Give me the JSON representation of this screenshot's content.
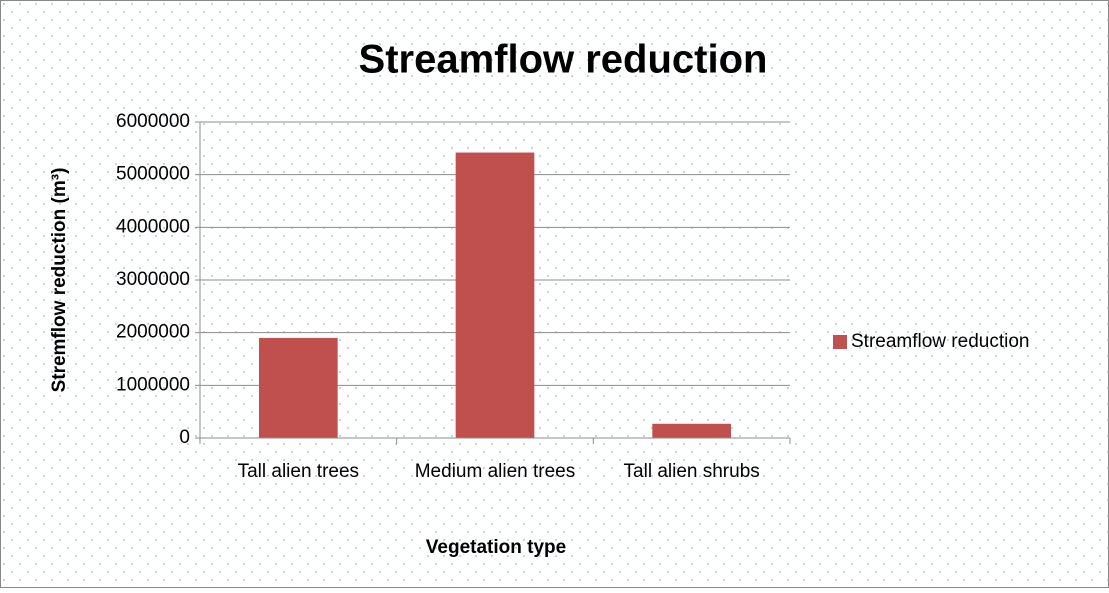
{
  "chart_data": {
    "type": "bar",
    "title": "Streamflow reduction",
    "categories": [
      "Tall alien trees",
      "Medium alien trees",
      "Tall alien shrubs"
    ],
    "series": [
      {
        "name": "Streamflow reduction",
        "color": "#c0504d",
        "values": [
          1900000,
          5420000,
          270000
        ]
      }
    ],
    "ylim": [
      0,
      6000000
    ],
    "yticks": [
      0,
      1000000,
      2000000,
      3000000,
      4000000,
      5000000,
      6000000
    ],
    "ylabel": "Stremflow reduction (m³)",
    "xlabel": "Vegetation type",
    "grid": true,
    "legend": "right"
  }
}
